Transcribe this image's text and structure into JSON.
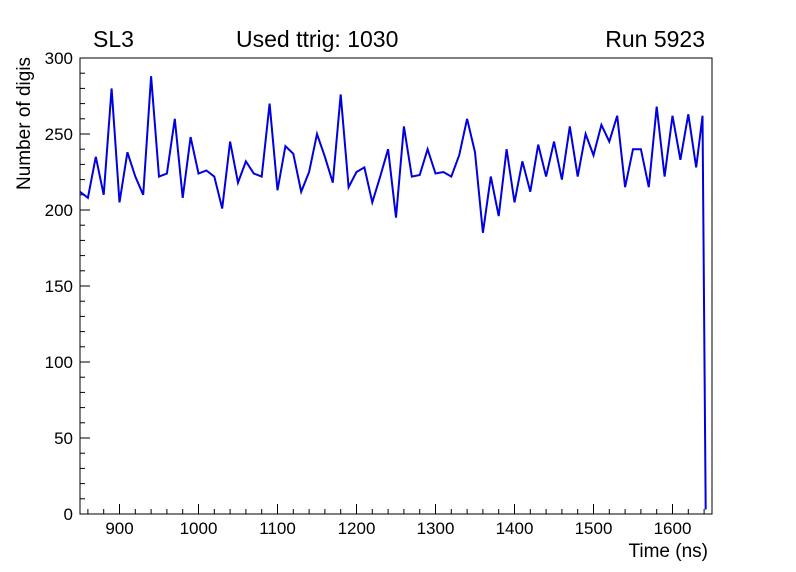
{
  "chart_data": {
    "type": "line",
    "title_left": "SL3",
    "title_center": "Used ttrig: 1030",
    "title_right": "Run 5923",
    "xlabel": "Time (ns)",
    "ylabel": "Number of digis",
    "xlim": [
      850,
      1650
    ],
    "ylim": [
      0,
      300
    ],
    "x_ticks": [
      900,
      1000,
      1100,
      1200,
      1300,
      1400,
      1500,
      1600
    ],
    "y_ticks": [
      0,
      50,
      100,
      150,
      200,
      250,
      300
    ],
    "x_minor_step": 20,
    "y_minor_step": 10,
    "line_color": "#0000e0",
    "axis_color": "#000000",
    "grid": false,
    "legend": "none",
    "x": [
      850,
      860,
      870,
      880,
      890,
      900,
      910,
      920,
      930,
      940,
      950,
      960,
      970,
      980,
      990,
      1000,
      1010,
      1020,
      1030,
      1040,
      1050,
      1060,
      1070,
      1080,
      1090,
      1100,
      1110,
      1120,
      1130,
      1140,
      1150,
      1160,
      1170,
      1180,
      1190,
      1200,
      1210,
      1220,
      1230,
      1240,
      1250,
      1260,
      1270,
      1280,
      1290,
      1300,
      1310,
      1320,
      1330,
      1340,
      1350,
      1360,
      1370,
      1380,
      1390,
      1400,
      1410,
      1420,
      1430,
      1440,
      1450,
      1460,
      1470,
      1480,
      1490,
      1500,
      1510,
      1520,
      1530,
      1540,
      1550,
      1560,
      1570,
      1580,
      1590,
      1600,
      1610,
      1620,
      1630,
      1638,
      1642
    ],
    "y": [
      212,
      208,
      235,
      210,
      280,
      205,
      238,
      222,
      210,
      288,
      222,
      224,
      260,
      208,
      248,
      224,
      226,
      222,
      201,
      245,
      218,
      232,
      224,
      222,
      270,
      213,
      242,
      237,
      212,
      225,
      250,
      235,
      218,
      276,
      215,
      225,
      228,
      205,
      222,
      240,
      195,
      255,
      222,
      223,
      240,
      224,
      225,
      222,
      236,
      260,
      238,
      185,
      222,
      196,
      240,
      205,
      232,
      212,
      243,
      222,
      245,
      220,
      255,
      222,
      250,
      236,
      256,
      245,
      262,
      215,
      240,
      240,
      215,
      268,
      222,
      262,
      233,
      263,
      228,
      262,
      3
    ]
  }
}
